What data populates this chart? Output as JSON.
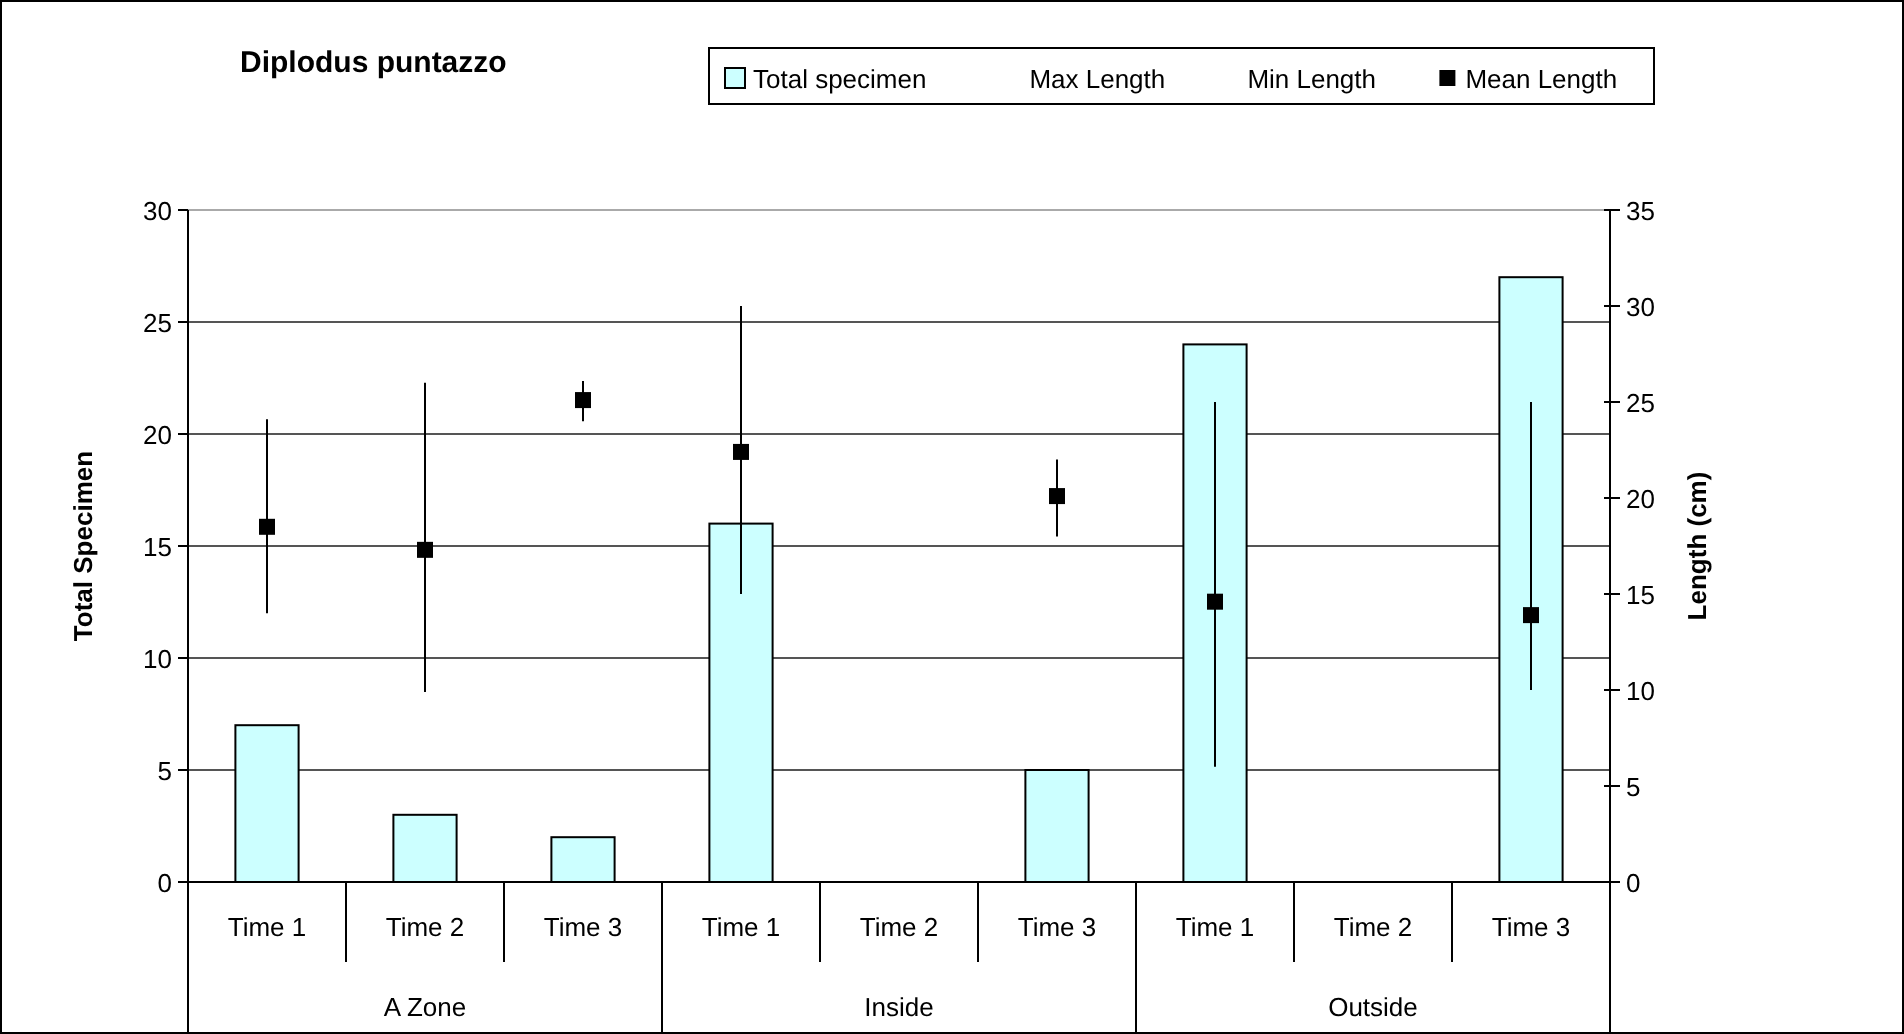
{
  "chart_data": {
    "type": "bar",
    "title": "Diplodus puntazzo",
    "ylabel": "Total Specimen",
    "y2label": "Length (cm)",
    "categories": [
      "Time 1",
      "Time 2",
      "Time 3",
      "Time 1",
      "Time 2",
      "Time 3",
      "Time 1",
      "Time 2",
      "Time 3"
    ],
    "annotations": [
      "A Zone",
      "Inside",
      "Outside"
    ],
    "series": [
      {
        "name": "Total specimen",
        "color": "#ccffff",
        "values": [
          7,
          3,
          2,
          16,
          null,
          5,
          24,
          null,
          27
        ]
      },
      {
        "name": "Max Length",
        "type": "scatter",
        "marker": "none",
        "color": "#000000",
        "values": [
          null,
          null,
          null,
          null,
          null,
          null,
          null,
          null,
          null
        ]
      },
      {
        "name": "Min Length",
        "type": "scatter",
        "marker": "none",
        "color": "#000000",
        "values": [
          null,
          null,
          null,
          null,
          null,
          null,
          null,
          null,
          null
        ]
      },
      {
        "name": "Mean Length",
        "type": "scatter",
        "marker": "square",
        "axis": "y2",
        "color": "#000000",
        "values": [
          18.5,
          17.3,
          25.1,
          22.4,
          null,
          20.1,
          14.6,
          null,
          13.9
        ],
        "errors": [
          [
            14,
            24.1
          ],
          [
            9.9,
            26
          ],
          [
            24,
            26.1
          ],
          [
            15,
            30
          ],
          null,
          [
            18,
            22
          ],
          [
            6,
            25
          ],
          null,
          [
            10,
            25
          ]
        ]
      }
    ],
    "ylim": [
      0,
      30
    ],
    "yticks": [
      0,
      5,
      10,
      15,
      20,
      25,
      30
    ],
    "y2lim": [
      0,
      35
    ],
    "y2ticks": [
      0,
      5,
      10,
      15,
      20,
      25,
      30,
      35
    ],
    "grid": "y",
    "legend": "top right"
  }
}
